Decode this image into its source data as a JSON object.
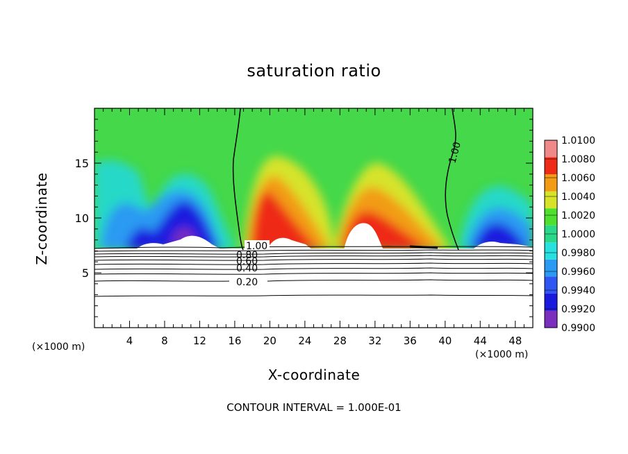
{
  "chart_data": {
    "type": "heatmap",
    "title": "saturation ratio",
    "xlabel": "X-coordinate",
    "ylabel": "Z-coordinate",
    "x_unit": "(×1000 m)",
    "xlim": [
      0,
      50
    ],
    "ylim": [
      0,
      20
    ],
    "x_ticks": [
      4,
      8,
      12,
      16,
      20,
      24,
      28,
      32,
      36,
      40,
      44,
      48
    ],
    "y_ticks": [
      5,
      10,
      15
    ],
    "colorbar": {
      "levels": [
        0.99,
        0.992,
        0.994,
        0.996,
        0.998,
        1.0,
        1.002,
        1.004,
        1.006,
        1.008,
        1.01
      ],
      "labels": [
        "0.9900",
        "0.9920",
        "0.9940",
        "0.9960",
        "0.9980",
        "1.0000",
        "1.0020",
        "1.0040",
        "1.0060",
        "1.0080",
        "1.0100"
      ],
      "colors": [
        "#7b2fbf",
        "#1a1adf",
        "#2f55f2",
        "#2a9af2",
        "#27e0e0",
        "#2ad88a",
        "#4ee02e",
        "#d7e32a",
        "#f29c16",
        "#ee2b17",
        "#f08a8a"
      ]
    },
    "contour_labels": [
      "1.00",
      "1.00",
      "0.80",
      "0.60",
      "0.40",
      "0.20"
    ],
    "contour_interval_text": "CONTOUR INTERVAL = 1.000E-01"
  }
}
